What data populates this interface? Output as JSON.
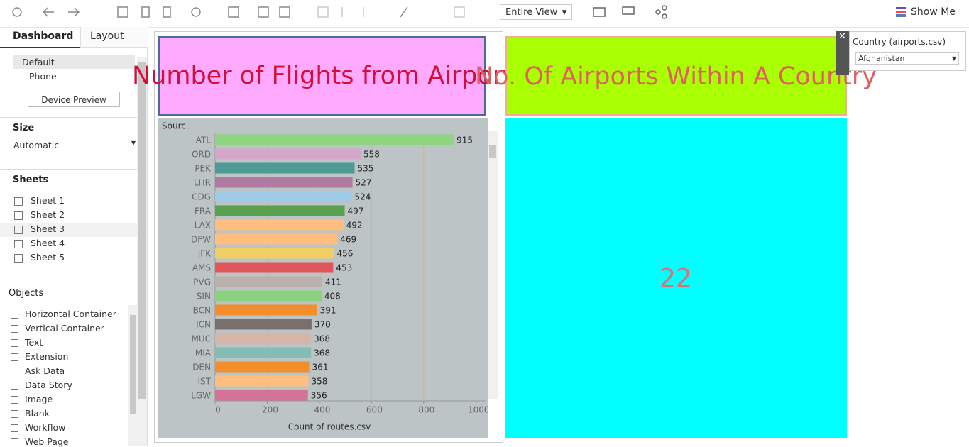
{
  "toolbar": {
    "view": "Entire View",
    "show_me": "Show Me"
  },
  "sidebar": {
    "tabs": [
      "Dashboard",
      "Layout"
    ],
    "devices": [
      "Default",
      "Phone"
    ],
    "device_preview": "Device Preview",
    "size_heading": "Size",
    "size": "Automatic",
    "sheets_heading": "Sheets",
    "sheets": [
      "Sheet 1",
      "Sheet 2",
      "Sheet 3",
      "Sheet 4",
      "Sheet 5"
    ],
    "objects_heading": "Objects",
    "objects": [
      "Horizontal Container",
      "Vertical Container",
      "Text",
      "Extension",
      "Ask Data",
      "Data Story",
      "Image",
      "Blank",
      "Workflow",
      "Web Page"
    ]
  },
  "dashboard": {
    "title_left": "Number of Flights from Airport",
    "title_right": "No. Of Airports Within A Country",
    "count": 22
  },
  "filter": {
    "label": "Country (airports.csv)",
    "value": "Afghanistan"
  },
  "chart_data": {
    "type": "bar",
    "orientation": "horizontal",
    "header": "Sourc..",
    "x_label": "Count of routes.csv",
    "categories": [
      "ATL",
      "ORD",
      "PEK",
      "LHR",
      "CDG",
      "FRA",
      "LAX",
      "DFW",
      "JFK",
      "AMS",
      "PVG",
      "SIN",
      "BCN",
      "ICN",
      "MUC",
      "MIA",
      "DEN",
      "IST",
      "LGW"
    ],
    "values": [
      915,
      558,
      535,
      527,
      524,
      497,
      492,
      469,
      456,
      453,
      411,
      408,
      391,
      370,
      368,
      368,
      361,
      358,
      356
    ],
    "colors": [
      "#8fd47e",
      "#d4a6c8",
      "#4e9a95",
      "#b07aa1",
      "#a0cbe8",
      "#59a14f",
      "#ffbe7d",
      "#ffbe7d",
      "#f1ce63",
      "#e15759",
      "#bab0ac",
      "#8cd17d",
      "#f28e2b",
      "#79706e",
      "#d7b5a6",
      "#86bcb6",
      "#f28e2b",
      "#ffbe7d",
      "#d37295"
    ],
    "xlim": [
      0,
      1040
    ],
    "xticks": [
      0,
      200,
      400,
      600,
      800,
      1000
    ],
    "grid": true
  }
}
